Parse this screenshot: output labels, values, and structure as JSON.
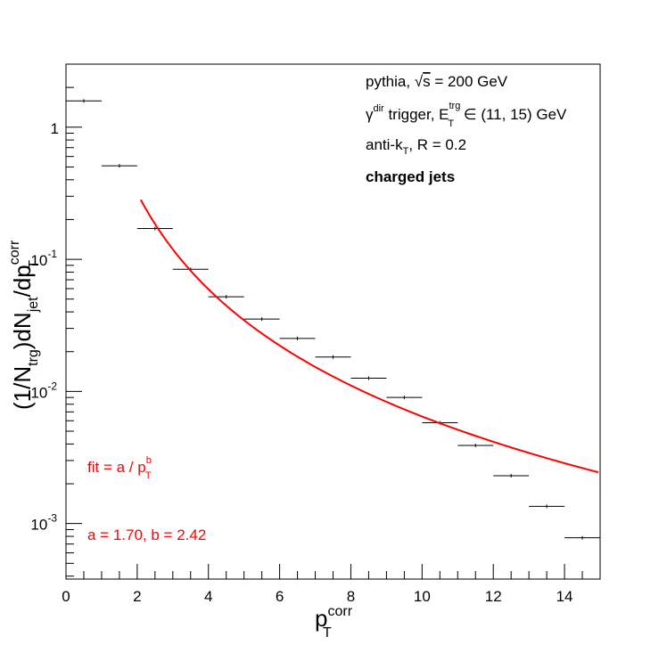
{
  "chart_data": {
    "type": "scatter",
    "xlabel": "p",
    "xlabel_sup": "corr",
    "xlabel_sub": "T",
    "ylabel_parts": {
      "p1": "(1/N",
      "p1_sub": "trg",
      "p2": ")dN",
      "p2_sub": "jet",
      "p3": "/dp",
      "p3_sup": "corr",
      "p3_sub": "T"
    },
    "xlim": [
      0,
      15
    ],
    "ylim": [
      0.00038,
      3.0
    ],
    "ylog": true,
    "grid": false,
    "x_ticks": [
      "0",
      "2",
      "4",
      "6",
      "8",
      "10",
      "12",
      "14"
    ],
    "y_ticks": [
      {
        "base": "1",
        "exp": ""
      },
      {
        "base": "10",
        "exp": "-1"
      },
      {
        "base": "10",
        "exp": "-2"
      },
      {
        "base": "10",
        "exp": "-3"
      }
    ],
    "series": [
      {
        "x": [
          0.5,
          1.5,
          2.5,
          3.5,
          4.5,
          5.5,
          6.5,
          7.5,
          8.5,
          9.5,
          10.5,
          11.5,
          12.5,
          13.5,
          14.5
        ],
        "x_err": [
          0.5,
          0.5,
          0.5,
          0.5,
          0.5,
          0.5,
          0.5,
          0.5,
          0.5,
          0.5,
          0.5,
          0.5,
          0.5,
          0.5,
          0.5
        ],
        "y": [
          1.58,
          0.51,
          0.171,
          0.084,
          0.052,
          0.0353,
          0.0252,
          0.0182,
          0.0126,
          0.009,
          0.0058,
          0.0039,
          0.0023,
          0.00135,
          0.00078
        ],
        "color": "#000000"
      }
    ],
    "fit": {
      "function": "a / x^b",
      "a": 1.7,
      "b": 2.42,
      "x_range": [
        2.1,
        14.95
      ],
      "color": "#ff0000"
    },
    "annotations": {
      "line1_a": "pythia, ",
      "line1_sqrt": "√",
      "line1_s": "s",
      "line1_b": " = 200 GeV",
      "line2_gamma": "γ",
      "line2_dir": "dir",
      "line2_mid": " trigger, E",
      "line2_trg": "trg",
      "line2_T": "T",
      "line2_end": " ∈ (11, 15) GeV",
      "line3_a": "anti-k",
      "line3_T": "T",
      "line3_b": ", R = 0.2",
      "line4": "charged jets",
      "fit_label": "fit = a / p",
      "fit_label_sup": "b",
      "fit_label_sub": "T",
      "fit_params": "a = 1.70, b = 2.42"
    }
  }
}
